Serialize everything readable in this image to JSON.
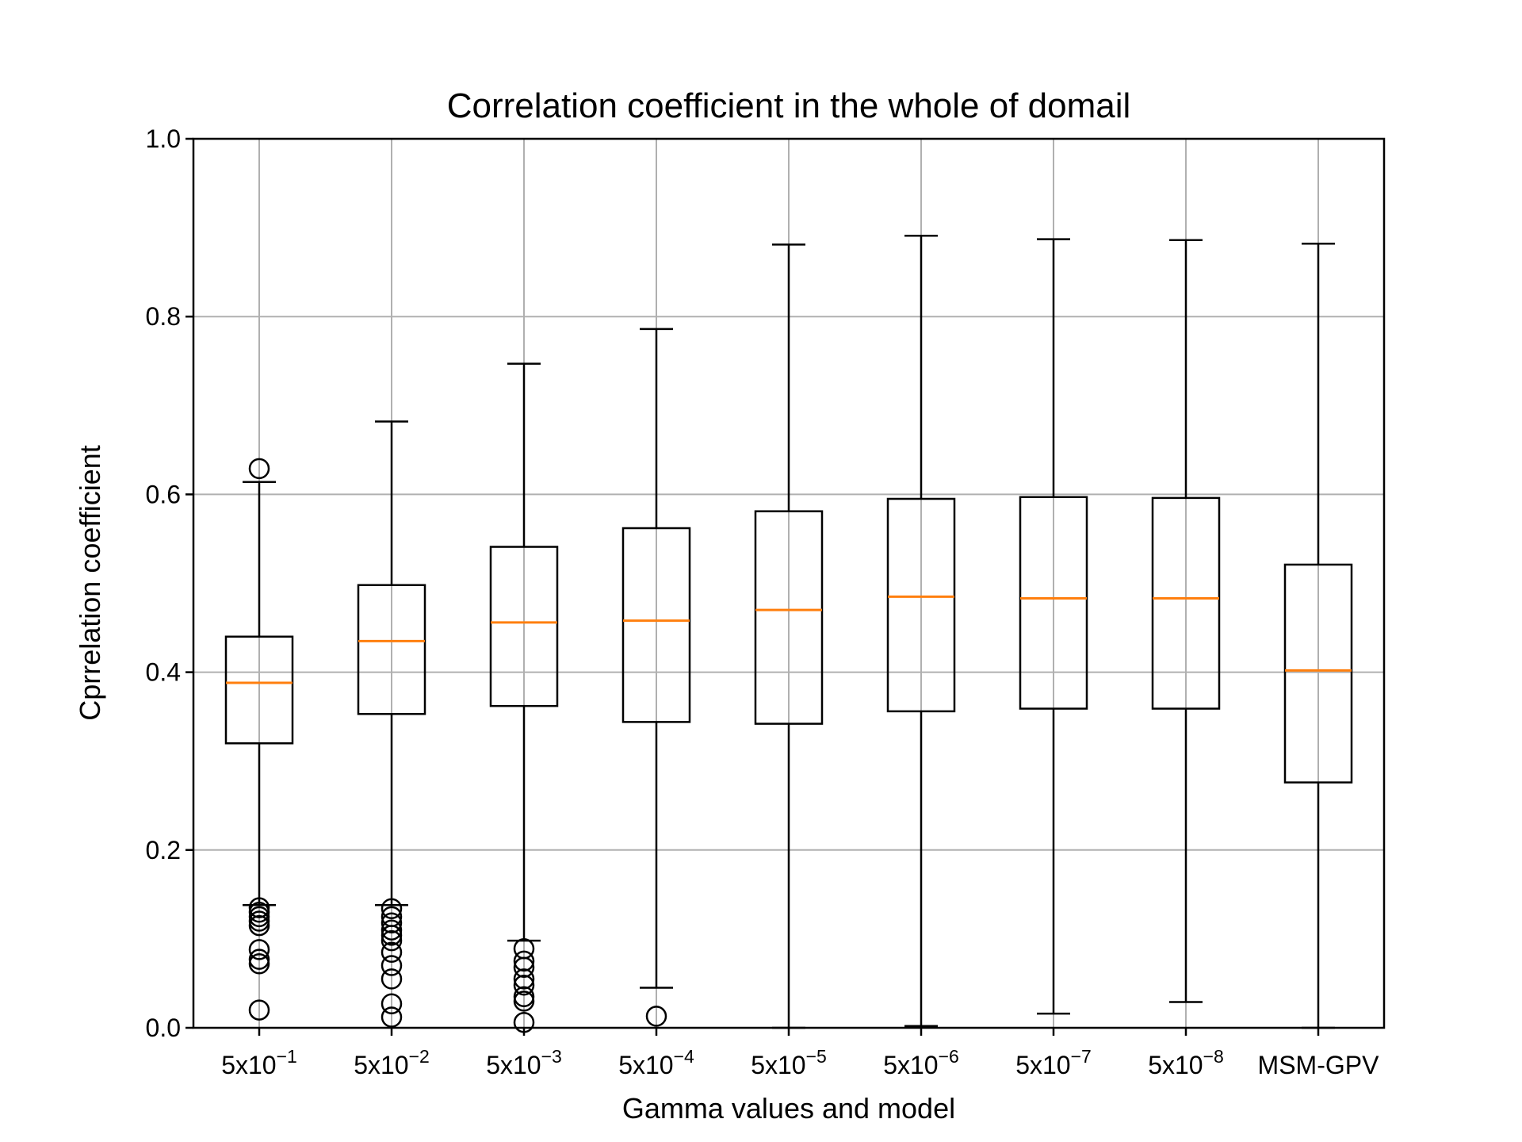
{
  "chart_data": {
    "type": "box",
    "title": "Correlation coefficient in the whole of domail",
    "xlabel": "Gamma values and model",
    "ylabel": "Cprrelation coefficient",
    "ylim": [
      0.0,
      1.0
    ],
    "yticks": [
      "0.0",
      "0.2",
      "0.4",
      "0.6",
      "0.8",
      "1.0"
    ],
    "grid": true,
    "median_color": "#ff7f0e",
    "box_color": "#000000",
    "categories": [
      {
        "base": "5x10",
        "exp": "−1"
      },
      {
        "base": "5x10",
        "exp": "−2"
      },
      {
        "base": "5x10",
        "exp": "−3"
      },
      {
        "base": "5x10",
        "exp": "−4"
      },
      {
        "base": "5x10",
        "exp": "−5"
      },
      {
        "base": "5x10",
        "exp": "−6"
      },
      {
        "base": "5x10",
        "exp": "−7"
      },
      {
        "base": "5x10",
        "exp": "−8"
      },
      {
        "base": "MSM-GPV",
        "exp": ""
      }
    ],
    "boxes": [
      {
        "whislo": 0.138,
        "q1": 0.32,
        "med": 0.388,
        "q3": 0.44,
        "whishi": 0.614,
        "fliers": [
          0.629,
          0.135,
          0.13,
          0.125,
          0.12,
          0.115,
          0.088,
          0.077,
          0.072,
          0.02
        ]
      },
      {
        "whislo": 0.138,
        "q1": 0.353,
        "med": 0.435,
        "q3": 0.498,
        "whishi": 0.682,
        "fliers": [
          0.134,
          0.125,
          0.118,
          0.11,
          0.104,
          0.098,
          0.085,
          0.07,
          0.055,
          0.027,
          0.012
        ]
      },
      {
        "whislo": 0.098,
        "q1": 0.362,
        "med": 0.456,
        "q3": 0.541,
        "whishi": 0.747,
        "fliers": [
          0.089,
          0.075,
          0.068,
          0.055,
          0.048,
          0.035,
          0.03,
          0.006
        ]
      },
      {
        "whislo": 0.045,
        "q1": 0.344,
        "med": 0.458,
        "q3": 0.562,
        "whishi": 0.786,
        "fliers": [
          0.013
        ]
      },
      {
        "whislo": 0.0,
        "q1": 0.342,
        "med": 0.47,
        "q3": 0.581,
        "whishi": 0.881,
        "fliers": []
      },
      {
        "whislo": 0.002,
        "q1": 0.356,
        "med": 0.485,
        "q3": 0.595,
        "whishi": 0.891,
        "fliers": []
      },
      {
        "whislo": 0.016,
        "q1": 0.359,
        "med": 0.483,
        "q3": 0.597,
        "whishi": 0.887,
        "fliers": []
      },
      {
        "whislo": 0.029,
        "q1": 0.359,
        "med": 0.483,
        "q3": 0.596,
        "whishi": 0.886,
        "fliers": []
      },
      {
        "whislo": 0.0,
        "q1": 0.276,
        "med": 0.402,
        "q3": 0.521,
        "whishi": 0.882,
        "fliers": []
      }
    ]
  }
}
